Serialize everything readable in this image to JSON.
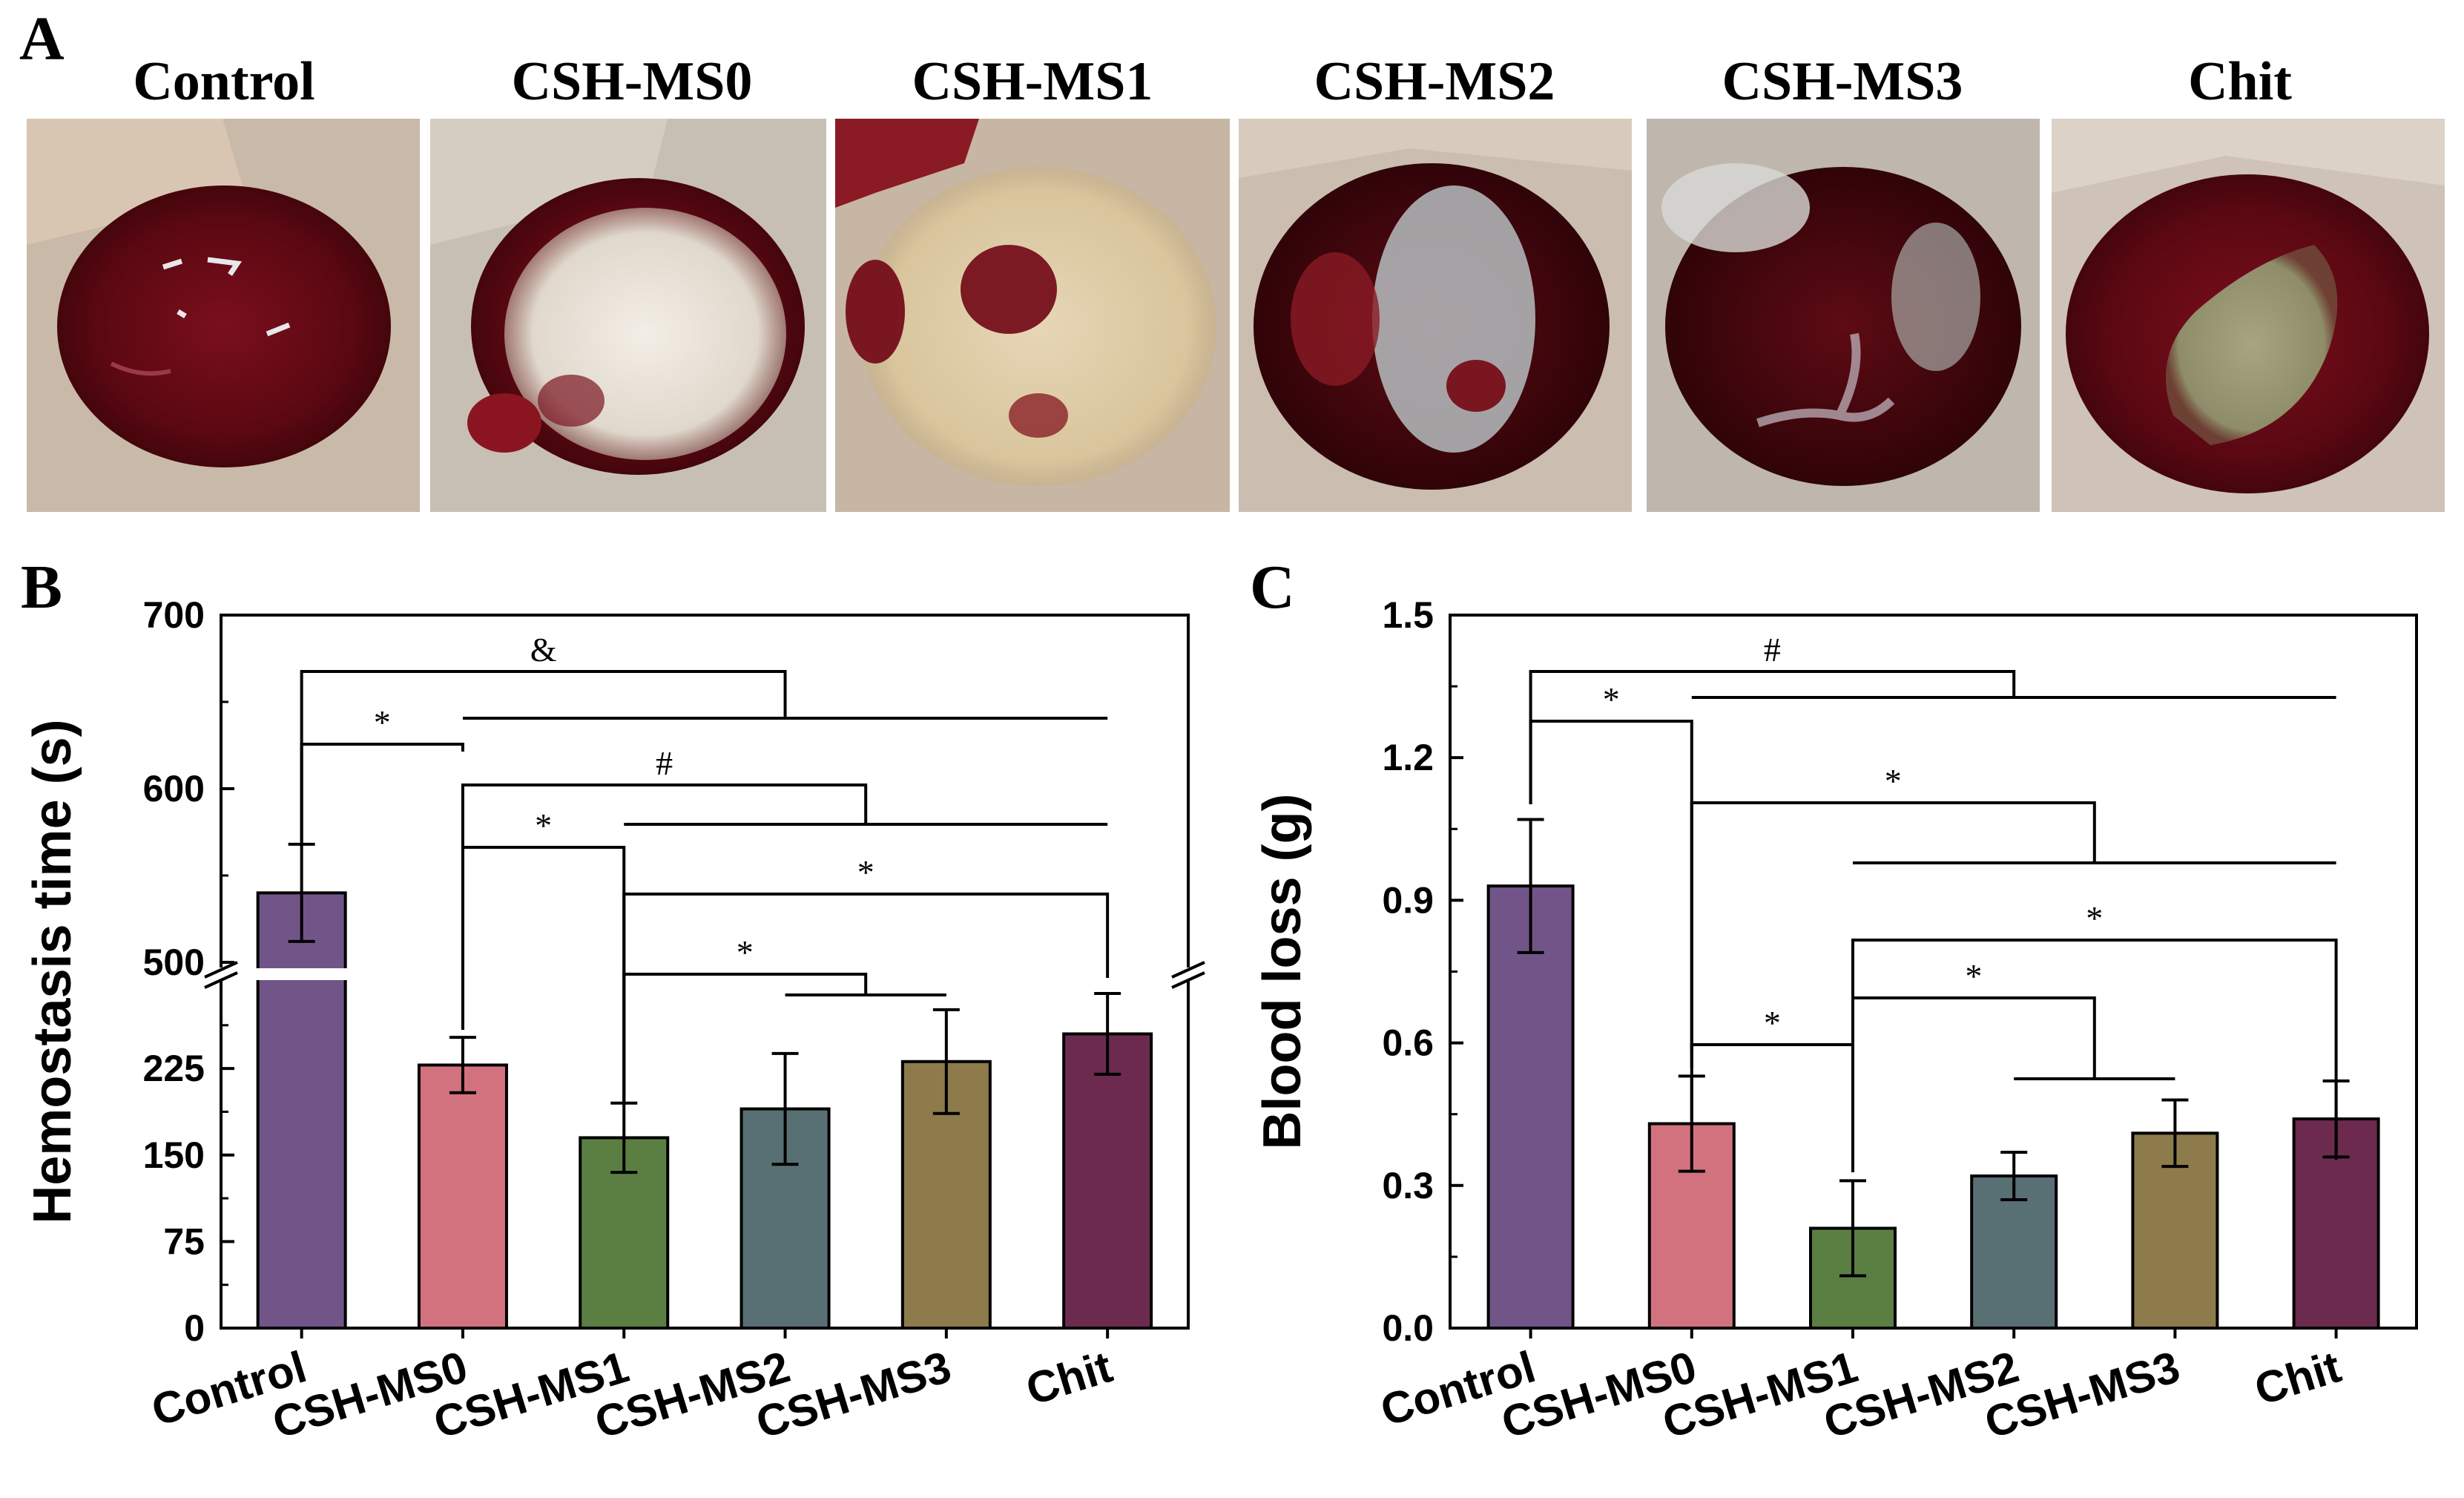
{
  "photos": {
    "letter": "A",
    "titles": [
      "Control",
      "CSH-MS0",
      "CSH-MS1",
      "CSH-MS2",
      "CSH-MS3",
      "Chit"
    ]
  },
  "colors": {
    "bars": [
      "#715589",
      "#d3727f",
      "#5b7f43",
      "#586f73",
      "#8d7b4c",
      "#6c2b4e"
    ],
    "axis": "#000000"
  },
  "chart_data": [
    {
      "panel": "B",
      "type": "bar",
      "title": "",
      "xlabel": "",
      "ylabel": "Hemostasis time (s)",
      "categories": [
        "Control",
        "CSH-MS0",
        "CSH-MS1",
        "CSH-MS2",
        "CSH-MS3",
        "Chit"
      ],
      "values": [
        540,
        228,
        165,
        190,
        231,
        255
      ],
      "errors": [
        28,
        24,
        30,
        48,
        45,
        35
      ],
      "axis_break": {
        "lower": [
          0,
          300
        ],
        "upper": [
          500,
          700
        ]
      },
      "yticks": [
        "0",
        "75",
        "150",
        "225",
        "500",
        "600",
        "700"
      ],
      "significance": [
        {
          "label": "&",
          "from": 0,
          "to": [
            1,
            5
          ]
        },
        {
          "label": "*",
          "from": 0,
          "to": [
            1,
            1
          ]
        },
        {
          "label": "#",
          "from": 1,
          "to": [
            2,
            5
          ]
        },
        {
          "label": "*",
          "from": 1,
          "to": [
            2,
            2
          ]
        },
        {
          "label": "*",
          "from": 2,
          "to": [
            5,
            5
          ]
        },
        {
          "label": "*",
          "from": 2,
          "to": [
            3,
            4
          ]
        }
      ]
    },
    {
      "panel": "C",
      "type": "bar",
      "title": "",
      "xlabel": "",
      "ylabel": "Blood loss (g)",
      "categories": [
        "Control",
        "CSH-MS0",
        "CSH-MS1",
        "CSH-MS2",
        "CSH-MS3",
        "Chit"
      ],
      "values": [
        0.93,
        0.43,
        0.21,
        0.32,
        0.41,
        0.44
      ],
      "errors": [
        0.14,
        0.1,
        0.1,
        0.05,
        0.07,
        0.08
      ],
      "ylim": [
        0,
        1.5
      ],
      "yticks": [
        "0.0",
        "0.3",
        "0.6",
        "0.9",
        "1.2",
        "1.5"
      ],
      "significance": [
        {
          "label": "#",
          "from": 0,
          "to": [
            1,
            5
          ]
        },
        {
          "label": "*",
          "from": 0,
          "to": [
            1,
            1
          ]
        },
        {
          "label": "*",
          "from": 1,
          "to": [
            2,
            5
          ]
        },
        {
          "label": "*",
          "from": 2,
          "to": [
            5,
            5
          ]
        },
        {
          "label": "*",
          "from": 2,
          "to": [
            3,
            4
          ]
        },
        {
          "label": "*",
          "from": 1,
          "to": [
            2,
            2
          ]
        }
      ]
    }
  ]
}
